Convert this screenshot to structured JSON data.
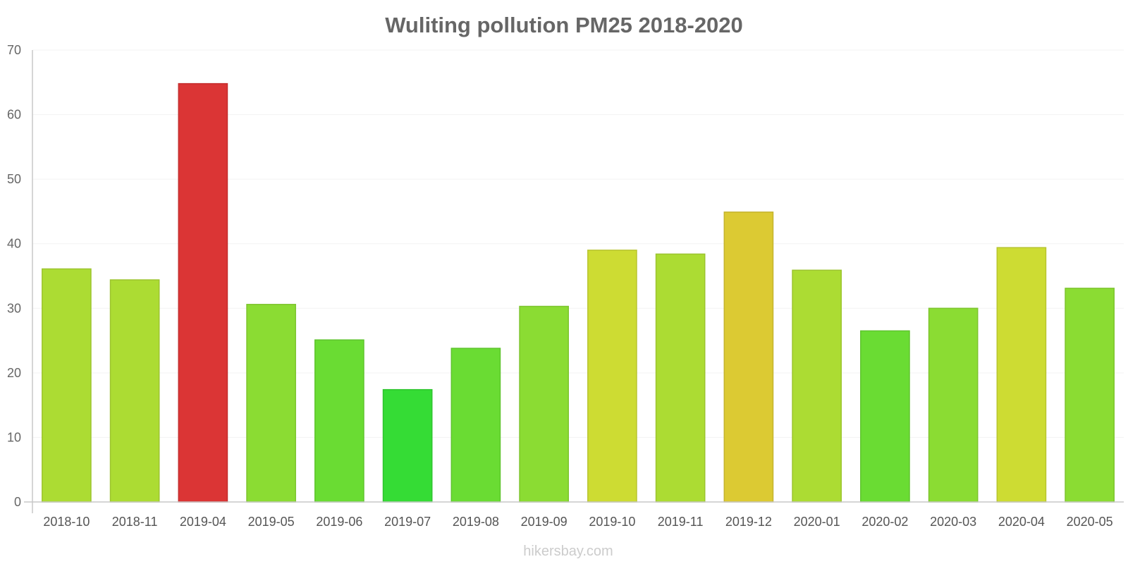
{
  "chart_data": {
    "type": "bar",
    "title": "Wuliting pollution PM25 2018-2020",
    "xlabel": "",
    "ylabel": "",
    "ylim": [
      0,
      70
    ],
    "yticks": [
      0,
      10,
      20,
      30,
      40,
      50,
      60,
      70
    ],
    "grid": true,
    "categories": [
      "2018-10",
      "2018-11",
      "2019-04",
      "2019-05",
      "2019-06",
      "2019-07",
      "2019-08",
      "2019-09",
      "2019-10",
      "2019-11",
      "2019-12",
      "2020-01",
      "2020-02",
      "2020-03",
      "2020-04",
      "2020-05"
    ],
    "values": [
      36.1,
      34.4,
      64.8,
      30.6,
      25.1,
      17.4,
      23.8,
      30.3,
      39.0,
      38.4,
      44.9,
      35.9,
      26.5,
      30.0,
      39.4,
      33.1
    ],
    "colors": [
      "#acdc33",
      "#acdc33",
      "#db3535",
      "#8bdc33",
      "#6adc33",
      "#35dc35",
      "#6adc33",
      "#8bdc33",
      "#cddc33",
      "#acdc33",
      "#dcca33",
      "#acdc33",
      "#6adc33",
      "#8bdc33",
      "#cddc33",
      "#8bdc33"
    ],
    "border_colors": [
      "#9cc42e",
      "#9cc42e",
      "#c42e2e",
      "#7dc42e",
      "#5fc42e",
      "#2ec42e",
      "#5fc42e",
      "#7dc42e",
      "#b8c42e",
      "#9cc42e",
      "#c4b42e",
      "#9cc42e",
      "#5fc42e",
      "#7dc42e",
      "#b8c42e",
      "#7dc42e"
    ]
  },
  "watermark": "hikersbay.com"
}
